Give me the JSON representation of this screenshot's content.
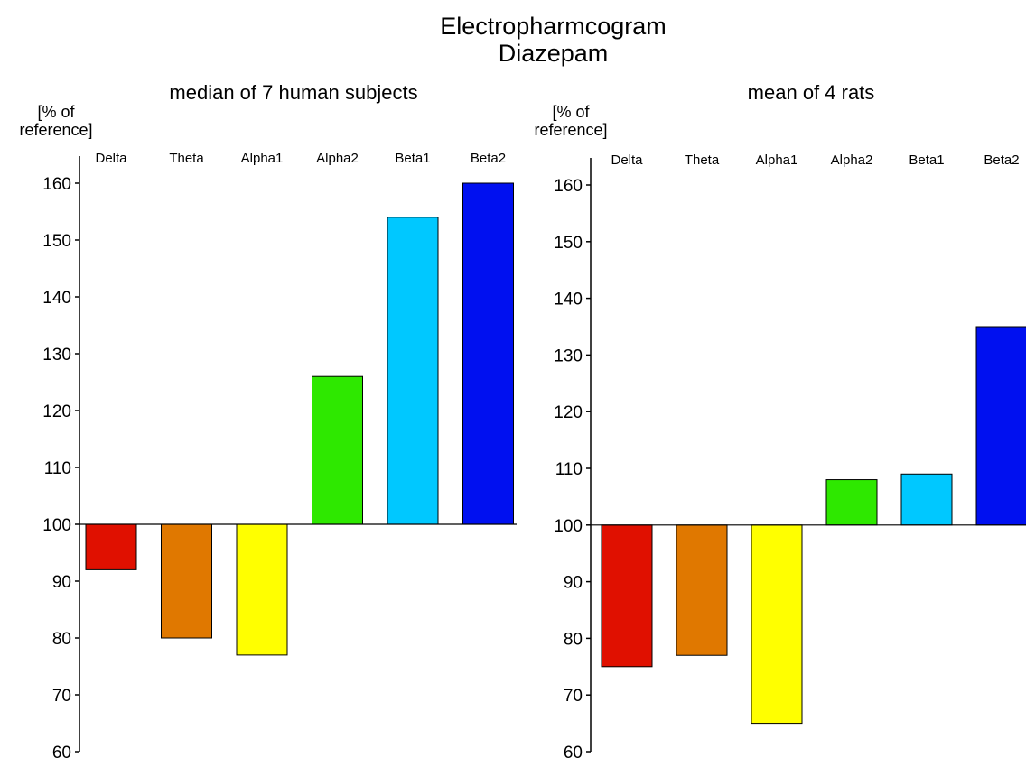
{
  "title": "Electropharmcogram",
  "subtitle": "Diazepam",
  "chart_data": [
    {
      "type": "bar",
      "title": "median of 7 human subjects",
      "ylabel": "[% of reference]",
      "ylabel_lines": [
        "[% of",
        "reference]"
      ],
      "categories": [
        "Delta",
        "Theta",
        "Alpha1",
        "Alpha2",
        "Beta1",
        "Beta2"
      ],
      "values": [
        92,
        80,
        77,
        126,
        154,
        160
      ],
      "baseline": 100,
      "ylim": [
        60,
        160
      ],
      "yticks": [
        60,
        70,
        80,
        90,
        100,
        110,
        120,
        130,
        140,
        150,
        160
      ],
      "colors": [
        "#e01000",
        "#e07800",
        "#ffff00",
        "#2ee800",
        "#00c8ff",
        "#0010f0"
      ],
      "grid": false,
      "legend": "none"
    },
    {
      "type": "bar",
      "title": "mean of 4 rats",
      "ylabel": "[% of reference]",
      "ylabel_lines": [
        "[% of",
        "reference]"
      ],
      "categories": [
        "Delta",
        "Theta",
        "Alpha1",
        "Alpha2",
        "Beta1",
        "Beta2"
      ],
      "values": [
        75,
        77,
        65,
        108,
        109,
        135
      ],
      "baseline": 100,
      "ylim": [
        60,
        160
      ],
      "yticks": [
        60,
        70,
        80,
        90,
        100,
        110,
        120,
        130,
        140,
        150,
        160
      ],
      "colors": [
        "#e01000",
        "#e07800",
        "#ffff00",
        "#2ee800",
        "#00c8ff",
        "#0010f0"
      ],
      "grid": false,
      "legend": "none"
    }
  ]
}
